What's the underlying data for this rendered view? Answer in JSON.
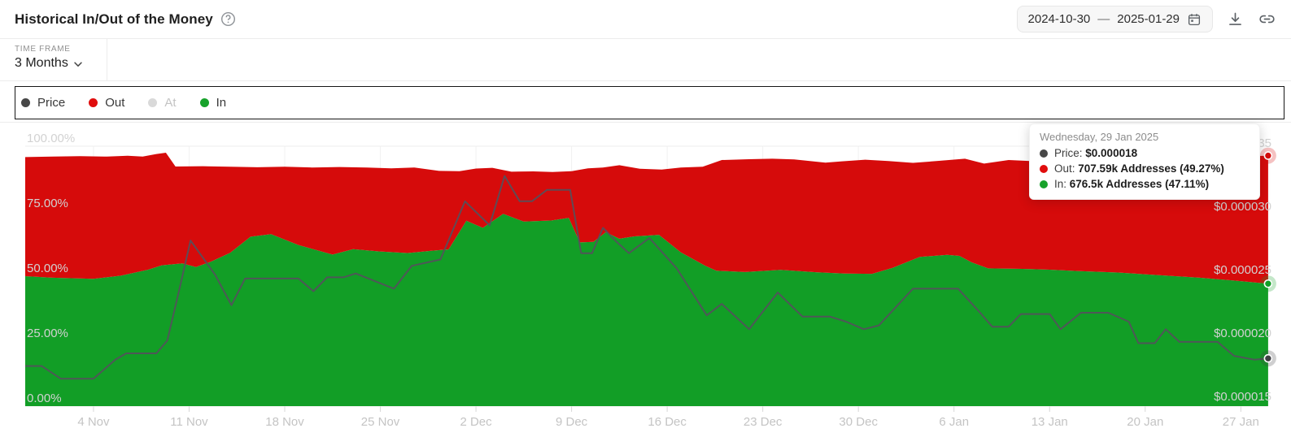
{
  "header": {
    "title": "Historical In/Out of the Money",
    "date_start": "2024-10-30",
    "date_separator": "—",
    "date_end": "2025-01-29"
  },
  "toolbar": {
    "timeframe_label": "TIME FRAME",
    "timeframe_value": "3 Months"
  },
  "legend": {
    "items": [
      {
        "label": "Price",
        "color": "#474747",
        "active": true
      },
      {
        "label": "Out",
        "color": "#e00d0d",
        "active": true
      },
      {
        "label": "At",
        "color": "#d9d9d9",
        "active": false
      },
      {
        "label": "In",
        "color": "#17a22b",
        "active": true
      }
    ]
  },
  "tooltip": {
    "title": "Wednesday, 29 Jan 2025",
    "rows": [
      {
        "label": "Price:",
        "value": "$0.000018",
        "color": "#474747"
      },
      {
        "label": "Out:",
        "value": "707.59k Addresses (49.27%)",
        "color": "#e00d0d"
      },
      {
        "label": "In:",
        "value": "676.5k Addresses (47.11%)",
        "color": "#17a22b"
      }
    ]
  },
  "chart_data": {
    "type": "area",
    "description": "Stacked area of % addresses In (green, bottom) and Out (red, stacked on top of In) of the money, with price line on right axis. x = days since 2024-10-30 (day 0) through 2025-01-29 (day 91). 'Out' series points give the stacked top edge (In%+Out%); the visible white gap above it is the hidden 'At' share.",
    "x_range_days": [
      0,
      91
    ],
    "grid": true,
    "x_ticks": [
      {
        "day": 5,
        "label": "4 Nov"
      },
      {
        "day": 12,
        "label": "11 Nov"
      },
      {
        "day": 19,
        "label": "18 Nov"
      },
      {
        "day": 26,
        "label": "25 Nov"
      },
      {
        "day": 33,
        "label": "2 Dec"
      },
      {
        "day": 40,
        "label": "9 Dec"
      },
      {
        "day": 47,
        "label": "16 Dec"
      },
      {
        "day": 54,
        "label": "23 Dec"
      },
      {
        "day": 61,
        "label": "30 Dec"
      },
      {
        "day": 68,
        "label": "6 Jan"
      },
      {
        "day": 75,
        "label": "13 Jan"
      },
      {
        "day": 82,
        "label": "20 Jan"
      },
      {
        "day": 89,
        "label": "27 Jan"
      }
    ],
    "left_axis": {
      "unit": "%",
      "range": [
        0,
        100
      ],
      "ticks": [
        {
          "pct": 100,
          "label": "100.00%"
        },
        {
          "pct": 75,
          "label": "75.00%"
        },
        {
          "pct": 50,
          "label": "50.00%"
        },
        {
          "pct": 25,
          "label": "25.00%"
        },
        {
          "pct": 0,
          "label": "0.00%"
        }
      ]
    },
    "right_axis": {
      "unit": "USD",
      "range_micro_usd": [
        15,
        35
      ],
      "ticks": [
        {
          "value": 35,
          "label": "$0.000035"
        },
        {
          "value": 30,
          "label": "$0.000030"
        },
        {
          "value": 25,
          "label": "$0.000025"
        },
        {
          "value": 20,
          "label": "$0.000020"
        },
        {
          "value": 15,
          "label": "$0.000015"
        }
      ]
    },
    "series": [
      {
        "name": "Out",
        "type": "area",
        "axis": "left",
        "color": "#d60b0b",
        "note": "stacked top edge = In% + Out%",
        "points": [
          [
            0,
            95.8
          ],
          [
            2,
            96
          ],
          [
            4,
            96.2
          ],
          [
            6,
            96
          ],
          [
            7.5,
            96.3
          ],
          [
            8.6,
            96
          ],
          [
            9.6,
            97
          ],
          [
            10.3,
            97.5
          ],
          [
            11,
            92.2
          ],
          [
            13,
            92.3
          ],
          [
            15,
            92.1
          ],
          [
            17,
            91.9
          ],
          [
            19,
            92.1
          ],
          [
            21,
            91.8
          ],
          [
            23,
            92
          ],
          [
            25,
            91.8
          ],
          [
            26.8,
            91.5
          ],
          [
            28.5,
            91.8
          ],
          [
            30.3,
            90.5
          ],
          [
            31.8,
            90.4
          ],
          [
            33,
            91.4
          ],
          [
            34.2,
            91.7
          ],
          [
            35.6,
            90.2
          ],
          [
            37.2,
            90.3
          ],
          [
            38.6,
            90.1
          ],
          [
            40,
            90.4
          ],
          [
            41.2,
            91.5
          ],
          [
            42.3,
            91.8
          ],
          [
            43.5,
            92.7
          ],
          [
            45,
            91.3
          ],
          [
            46.6,
            91
          ],
          [
            48,
            91.8
          ],
          [
            49.6,
            92.1
          ],
          [
            51,
            94.7
          ],
          [
            53,
            95
          ],
          [
            54.7,
            95.2
          ],
          [
            56.3,
            94.9
          ],
          [
            58.6,
            93.7
          ],
          [
            59.8,
            94.2
          ],
          [
            61.5,
            94.8
          ],
          [
            63.2,
            94.3
          ],
          [
            65,
            93.6
          ],
          [
            67,
            94.4
          ],
          [
            68.8,
            95.2
          ],
          [
            70.2,
            93.3
          ],
          [
            72,
            94.7
          ],
          [
            73.6,
            94.3
          ],
          [
            75.6,
            93.7
          ],
          [
            77.6,
            94.7
          ],
          [
            79.6,
            95.5
          ],
          [
            80.8,
            96.5
          ],
          [
            82,
            95.5
          ],
          [
            82.9,
            94.2
          ],
          [
            84.2,
            95
          ],
          [
            85.6,
            95.8
          ],
          [
            87.2,
            95.3
          ],
          [
            88.6,
            95.9
          ],
          [
            90,
            96.2
          ],
          [
            91,
            96.38
          ]
        ]
      },
      {
        "name": "In",
        "type": "area",
        "axis": "left",
        "color": "#129e26",
        "points": [
          [
            0,
            50
          ],
          [
            2,
            49.4
          ],
          [
            5,
            49
          ],
          [
            7,
            50.2
          ],
          [
            9,
            52.5
          ],
          [
            10,
            54.2
          ],
          [
            11.5,
            54.9
          ],
          [
            12.5,
            53.5
          ],
          [
            13.6,
            55.6
          ],
          [
            15,
            59
          ],
          [
            16.5,
            65.2
          ],
          [
            18,
            66.2
          ],
          [
            20,
            62
          ],
          [
            22.5,
            58.3
          ],
          [
            24,
            60.4
          ],
          [
            26,
            59.5
          ],
          [
            28,
            58.9
          ],
          [
            29.8,
            59.8
          ],
          [
            31,
            60.3
          ],
          [
            32.3,
            71.3
          ],
          [
            33.5,
            68.6
          ],
          [
            35,
            74
          ],
          [
            36.5,
            71
          ],
          [
            38.5,
            71.4
          ],
          [
            39.8,
            72.4
          ],
          [
            40.6,
            63
          ],
          [
            41.6,
            63.2
          ],
          [
            42.5,
            66.9
          ],
          [
            43.5,
            64.4
          ],
          [
            44.6,
            65.3
          ],
          [
            46.4,
            65.9
          ],
          [
            48,
            59.2
          ],
          [
            49.8,
            54
          ],
          [
            50.6,
            52.1
          ],
          [
            52.7,
            51.6
          ],
          [
            55.3,
            52.4
          ],
          [
            58,
            51.5
          ],
          [
            60,
            51
          ],
          [
            62,
            50.9
          ],
          [
            63.5,
            53.2
          ],
          [
            65.5,
            57.4
          ],
          [
            67.5,
            58.2
          ],
          [
            68.4,
            57.8
          ],
          [
            69.3,
            55.3
          ],
          [
            70.5,
            53
          ],
          [
            73,
            52.8
          ],
          [
            75,
            52.5
          ],
          [
            77,
            52
          ],
          [
            80,
            51.4
          ],
          [
            83,
            50.4
          ],
          [
            86,
            49.4
          ],
          [
            88.5,
            48.3
          ],
          [
            91,
            47.11
          ]
        ]
      },
      {
        "name": "Price",
        "type": "line",
        "axis": "right",
        "color": "#55515c",
        "unit_micro_usd": true,
        "points": [
          [
            0,
            17.4
          ],
          [
            1.2,
            17.4
          ],
          [
            2.6,
            16.4
          ],
          [
            5,
            16.4
          ],
          [
            6.6,
            17.9
          ],
          [
            7.4,
            18.4
          ],
          [
            9.6,
            18.4
          ],
          [
            10.4,
            19.4
          ],
          [
            11.3,
            23.5
          ],
          [
            12.1,
            27.3
          ],
          [
            13.9,
            24.6
          ],
          [
            15.1,
            22.2
          ],
          [
            16.1,
            24.3
          ],
          [
            20,
            24.3
          ],
          [
            21.1,
            23.3
          ],
          [
            22.1,
            24.4
          ],
          [
            23.3,
            24.4
          ],
          [
            24.2,
            24.7
          ],
          [
            27,
            23.5
          ],
          [
            28.3,
            25.3
          ],
          [
            30.4,
            25.8
          ],
          [
            32.2,
            30.4
          ],
          [
            34,
            28.5
          ],
          [
            35.1,
            32.4
          ],
          [
            36.2,
            30.4
          ],
          [
            37.1,
            30.4
          ],
          [
            38.2,
            31.3
          ],
          [
            39.9,
            31.3
          ],
          [
            40.7,
            26.3
          ],
          [
            41.5,
            26.3
          ],
          [
            42.3,
            28.3
          ],
          [
            43.2,
            27.3
          ],
          [
            44.2,
            26.3
          ],
          [
            45.7,
            27.5
          ],
          [
            47.7,
            25.1
          ],
          [
            49.9,
            21.4
          ],
          [
            51,
            22.3
          ],
          [
            53,
            20.3
          ],
          [
            55.1,
            23.2
          ],
          [
            56.9,
            21.3
          ],
          [
            58.9,
            21.3
          ],
          [
            60.1,
            20.9
          ],
          [
            61.4,
            20.3
          ],
          [
            62.5,
            20.6
          ],
          [
            65,
            23.5
          ],
          [
            68.3,
            23.5
          ],
          [
            70,
            21.5
          ],
          [
            70.8,
            20.5
          ],
          [
            72,
            20.5
          ],
          [
            72.9,
            21.5
          ],
          [
            75,
            21.5
          ],
          [
            75.8,
            20.3
          ],
          [
            77.3,
            21.6
          ],
          [
            79.3,
            21.6
          ],
          [
            80.8,
            20.9
          ],
          [
            81.5,
            19.2
          ],
          [
            82.7,
            19.2
          ],
          [
            83.5,
            20.3
          ],
          [
            84.5,
            19.3
          ],
          [
            87.3,
            19.3
          ],
          [
            88.5,
            18.2
          ],
          [
            90,
            17.9
          ],
          [
            91,
            18
          ]
        ]
      }
    ],
    "end_markers": [
      {
        "series": "Out",
        "day": 91,
        "pct": 96.38,
        "color": "#d60b0b"
      },
      {
        "series": "In",
        "day": 91,
        "pct": 47.11,
        "color": "#129e26"
      },
      {
        "series": "Price",
        "day": 91,
        "value_micro_usd": 18,
        "color": "#3f3f44"
      }
    ]
  }
}
